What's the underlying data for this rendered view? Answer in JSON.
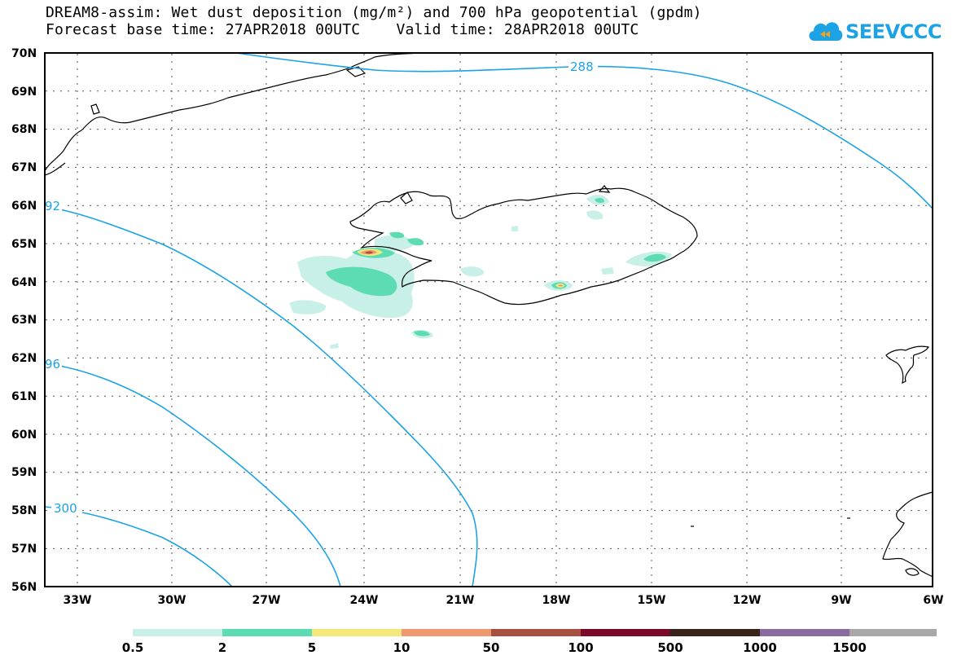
{
  "title": {
    "line1": "DREAM8-assim: Wet dust deposition (mg/m²) and 700 hPa geopotential (gpdm)",
    "line2": "Forecast base time: 27APR2018 00UTC    Valid time: 28APR2018 00UTC"
  },
  "logo": {
    "text": "SEEVCCC",
    "icon": "cloud-icon"
  },
  "map": {
    "lat_labels": [
      "70N",
      "69N",
      "68N",
      "67N",
      "66N",
      "65N",
      "64N",
      "63N",
      "62N",
      "61N",
      "60N",
      "59N",
      "58N",
      "57N",
      "56N"
    ],
    "lon_labels": [
      "33W",
      "30W",
      "27W",
      "24W",
      "21W",
      "18W",
      "15W",
      "12W",
      "9W",
      "6W"
    ],
    "grid": true,
    "contour_color": "#1ba3e5",
    "contour_labels": [
      "288",
      "92",
      "96",
      "300"
    ]
  },
  "legend": {
    "labels": [
      "0.5",
      "2",
      "5",
      "10",
      "50",
      "100",
      "500",
      "1000",
      "1500"
    ],
    "colors": [
      "#c8f0e8",
      "#5ddcb4",
      "#f5e87a",
      "#ee9870",
      "#a85040",
      "#7a0a28",
      "#382418",
      "#8c6aa0",
      "#a8a8a8"
    ]
  }
}
